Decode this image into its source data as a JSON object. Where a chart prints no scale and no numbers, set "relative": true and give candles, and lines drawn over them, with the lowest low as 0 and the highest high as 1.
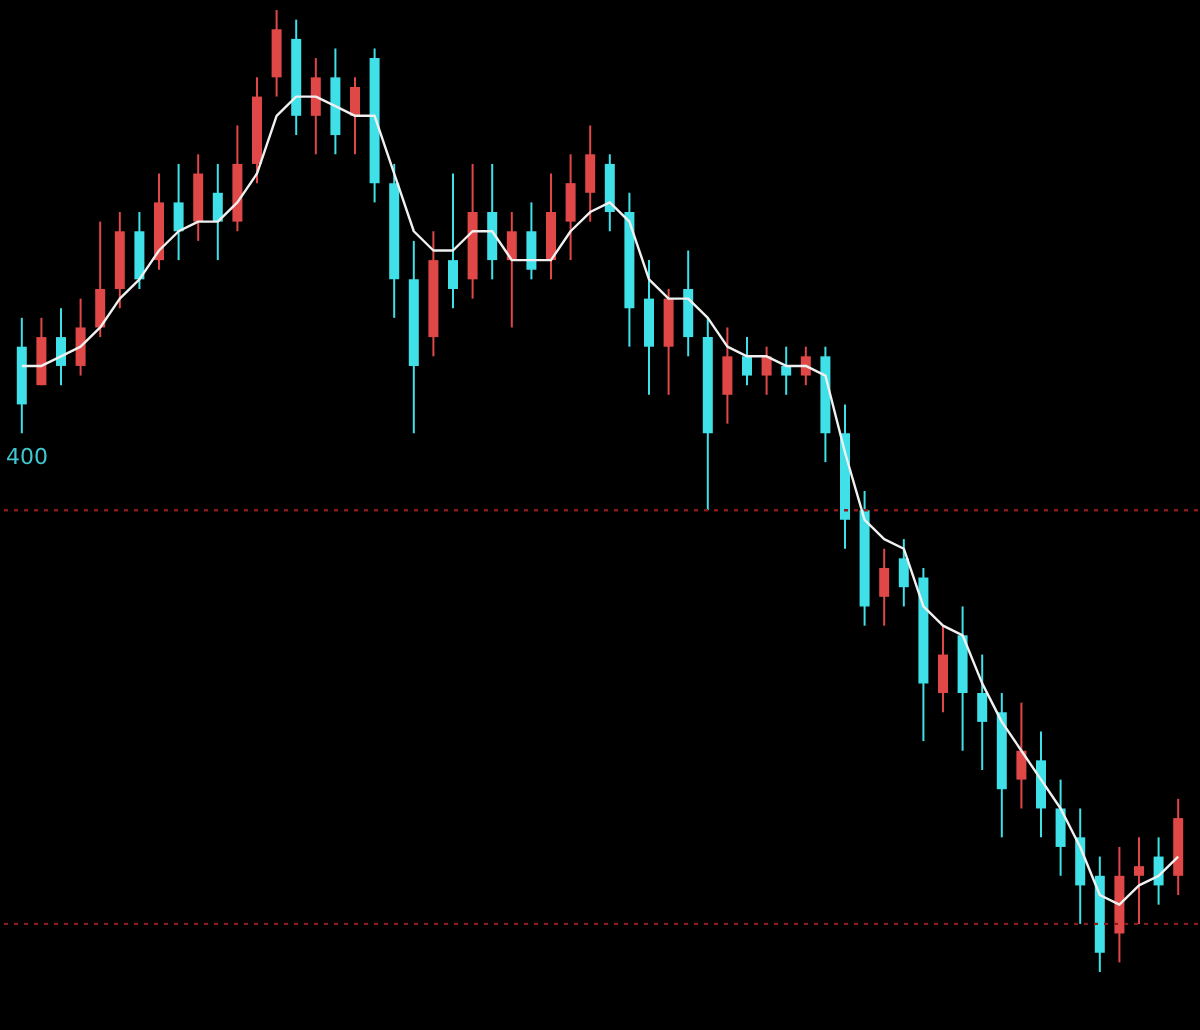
{
  "chart_data": {
    "type": "candlestick",
    "relative": true,
    "tick_labels": false,
    "categories": [
      null,
      null,
      null,
      null,
      null,
      null,
      null,
      null,
      null,
      null,
      null,
      null,
      null,
      null,
      null,
      null,
      null,
      null,
      null,
      null,
      null,
      null,
      null,
      null,
      null,
      null,
      null,
      null,
      null,
      null,
      null,
      null,
      null,
      null,
      null,
      null,
      null,
      null,
      null,
      null,
      null,
      null,
      null,
      null,
      null,
      null,
      null,
      null,
      null,
      null,
      null,
      null,
      null,
      null,
      null,
      null,
      null,
      null,
      null,
      null
    ],
    "ohlc": [
      [
        0.65,
        0.68,
        0.56,
        0.59
      ],
      [
        0.61,
        0.68,
        0.61,
        0.66
      ],
      [
        0.66,
        0.69,
        0.61,
        0.63
      ],
      [
        0.63,
        0.7,
        0.62,
        0.67
      ],
      [
        0.67,
        0.78,
        0.66,
        0.71
      ],
      [
        0.71,
        0.79,
        0.69,
        0.77
      ],
      [
        0.77,
        0.79,
        0.71,
        0.72
      ],
      [
        0.74,
        0.83,
        0.73,
        0.8
      ],
      [
        0.8,
        0.84,
        0.74,
        0.77
      ],
      [
        0.78,
        0.85,
        0.76,
        0.83
      ],
      [
        0.81,
        0.84,
        0.74,
        0.78
      ],
      [
        0.78,
        0.88,
        0.77,
        0.84
      ],
      [
        0.84,
        0.93,
        0.82,
        0.91
      ],
      [
        0.93,
        1.0,
        0.91,
        0.98
      ],
      [
        0.97,
        0.99,
        0.87,
        0.89
      ],
      [
        0.89,
        0.95,
        0.85,
        0.93
      ],
      [
        0.93,
        0.96,
        0.85,
        0.87
      ],
      [
        0.89,
        0.93,
        0.85,
        0.92
      ],
      [
        0.95,
        0.96,
        0.8,
        0.82
      ],
      [
        0.82,
        0.84,
        0.68,
        0.72
      ],
      [
        0.72,
        0.76,
        0.56,
        0.63
      ],
      [
        0.66,
        0.77,
        0.64,
        0.74
      ],
      [
        0.74,
        0.83,
        0.69,
        0.71
      ],
      [
        0.72,
        0.84,
        0.7,
        0.79
      ],
      [
        0.79,
        0.84,
        0.72,
        0.74
      ],
      [
        0.74,
        0.79,
        0.67,
        0.77
      ],
      [
        0.77,
        0.8,
        0.72,
        0.73
      ],
      [
        0.74,
        0.83,
        0.72,
        0.79
      ],
      [
        0.78,
        0.85,
        0.74,
        0.82
      ],
      [
        0.81,
        0.88,
        0.78,
        0.85
      ],
      [
        0.84,
        0.85,
        0.77,
        0.79
      ],
      [
        0.79,
        0.81,
        0.65,
        0.69
      ],
      [
        0.7,
        0.74,
        0.6,
        0.65
      ],
      [
        0.65,
        0.71,
        0.6,
        0.7
      ],
      [
        0.71,
        0.75,
        0.64,
        0.66
      ],
      [
        0.66,
        0.68,
        0.48,
        0.56
      ],
      [
        0.6,
        0.67,
        0.57,
        0.64
      ],
      [
        0.64,
        0.66,
        0.61,
        0.62
      ],
      [
        0.62,
        0.65,
        0.6,
        0.64
      ],
      [
        0.63,
        0.65,
        0.6,
        0.62
      ],
      [
        0.62,
        0.65,
        0.61,
        0.64
      ],
      [
        0.64,
        0.65,
        0.53,
        0.56
      ],
      [
        0.56,
        0.59,
        0.44,
        0.47
      ],
      [
        0.48,
        0.5,
        0.36,
        0.38
      ],
      [
        0.39,
        0.44,
        0.36,
        0.42
      ],
      [
        0.43,
        0.45,
        0.38,
        0.4
      ],
      [
        0.41,
        0.42,
        0.24,
        0.3
      ],
      [
        0.29,
        0.36,
        0.27,
        0.33
      ],
      [
        0.35,
        0.38,
        0.23,
        0.29
      ],
      [
        0.29,
        0.33,
        0.21,
        0.26
      ],
      [
        0.27,
        0.29,
        0.14,
        0.19
      ],
      [
        0.2,
        0.28,
        0.17,
        0.23
      ],
      [
        0.22,
        0.25,
        0.14,
        0.17
      ],
      [
        0.17,
        0.2,
        0.1,
        0.13
      ],
      [
        0.14,
        0.17,
        0.05,
        0.09
      ],
      [
        0.1,
        0.12,
        0.0,
        0.02
      ],
      [
        0.04,
        0.13,
        0.01,
        0.1
      ],
      [
        0.1,
        0.14,
        0.05,
        0.11
      ],
      [
        0.12,
        0.14,
        0.07,
        0.09
      ],
      [
        0.1,
        0.18,
        0.08,
        0.16
      ]
    ],
    "colors": [
      "#3fe0e8",
      "#e04848",
      "#3fe0e8",
      "#e04848",
      "#e04848",
      "#e04848",
      "#3fe0e8",
      "#e04848",
      "#3fe0e8",
      "#e04848",
      "#3fe0e8",
      "#e04848",
      "#e04848",
      "#e04848",
      "#3fe0e8",
      "#e04848",
      "#3fe0e8",
      "#e04848",
      "#3fe0e8",
      "#3fe0e8",
      "#3fe0e8",
      "#e04848",
      "#3fe0e8",
      "#e04848",
      "#3fe0e8",
      "#e04848",
      "#3fe0e8",
      "#e04848",
      "#e04848",
      "#e04848",
      "#3fe0e8",
      "#3fe0e8",
      "#3fe0e8",
      "#e04848",
      "#3fe0e8",
      "#3fe0e8",
      "#e04848",
      "#3fe0e8",
      "#e04848",
      "#3fe0e8",
      "#e04848",
      "#3fe0e8",
      "#3fe0e8",
      "#3fe0e8",
      "#e04848",
      "#3fe0e8",
      "#3fe0e8",
      "#e04848",
      "#3fe0e8",
      "#3fe0e8",
      "#3fe0e8",
      "#e04848",
      "#3fe0e8",
      "#3fe0e8",
      "#3fe0e8",
      "#3fe0e8",
      "#e04848",
      "#e04848",
      "#3fe0e8",
      "#e04848"
    ],
    "series": [
      {
        "type": "line",
        "color": "#f0f0f0",
        "line_style": "solid",
        "marker": "none",
        "values": [
          0.63,
          0.63,
          0.64,
          0.65,
          0.67,
          0.7,
          0.72,
          0.75,
          0.77,
          0.78,
          0.78,
          0.8,
          0.83,
          0.89,
          0.91,
          0.91,
          0.9,
          0.89,
          0.89,
          0.83,
          0.77,
          0.75,
          0.75,
          0.77,
          0.77,
          0.74,
          0.74,
          0.74,
          0.77,
          0.79,
          0.8,
          0.78,
          0.72,
          0.7,
          0.7,
          0.68,
          0.65,
          0.64,
          0.64,
          0.63,
          0.63,
          0.62,
          0.54,
          0.47,
          0.45,
          0.44,
          0.38,
          0.36,
          0.35,
          0.3,
          0.26,
          0.23,
          0.2,
          0.17,
          0.13,
          0.08,
          0.07,
          0.09,
          0.1,
          0.12
        ]
      }
    ],
    "ref_lines": [
      {
        "axis": "y",
        "value": 0.48,
        "color": "#8b1a1a",
        "line_style": "dotted"
      },
      {
        "axis": "y",
        "value": 0.05,
        "color": "#8b1a1a",
        "line_style": "dotted"
      }
    ],
    "annotations": [
      "400"
    ]
  }
}
